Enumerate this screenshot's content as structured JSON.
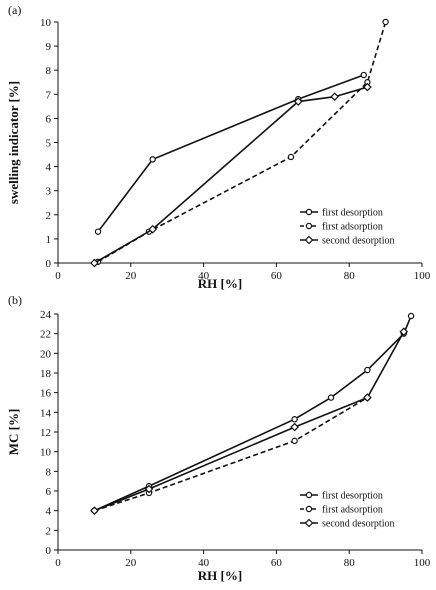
{
  "chart_data": [
    {
      "panel_label": "(a)",
      "type": "line",
      "xlabel": "RH [%]",
      "ylabel": "swelling indicator  [%]",
      "xlim": [
        0,
        100
      ],
      "ylim": [
        0,
        10
      ],
      "xticks": [
        0,
        20,
        40,
        60,
        80,
        100
      ],
      "yticks": [
        0,
        1,
        2,
        3,
        4,
        5,
        6,
        7,
        8,
        9,
        10
      ],
      "legend_position": "right",
      "series": [
        {
          "name": "first desorption",
          "style": "solid",
          "marker": "circle",
          "x": [
            11,
            26,
            66,
            84
          ],
          "y": [
            1.3,
            4.3,
            6.8,
            7.8
          ]
        },
        {
          "name": "first adsorption",
          "style": "dashed",
          "marker": "circle",
          "x": [
            11,
            25,
            64,
            85,
            90
          ],
          "y": [
            0.05,
            1.3,
            4.4,
            7.5,
            10
          ]
        },
        {
          "name": "second desorption",
          "style": "solid",
          "marker": "diamond",
          "x": [
            10,
            26,
            66,
            76,
            85
          ],
          "y": [
            0.0,
            1.4,
            6.7,
            6.9,
            7.3
          ]
        }
      ]
    },
    {
      "panel_label": "(b)",
      "type": "line",
      "xlabel": "RH [%]",
      "ylabel": "MC [%]",
      "xlim": [
        0,
        100
      ],
      "ylim": [
        0,
        24
      ],
      "xticks": [
        0,
        20,
        40,
        60,
        80,
        100
      ],
      "yticks": [
        0,
        2,
        4,
        6,
        8,
        10,
        12,
        14,
        16,
        18,
        20,
        22,
        24
      ],
      "legend_position": "right",
      "series": [
        {
          "name": "first desorption",
          "style": "solid",
          "marker": "circle",
          "x": [
            10,
            25,
            65,
            75,
            85,
            95,
            97
          ],
          "y": [
            4.0,
            6.5,
            13.3,
            15.5,
            18.3,
            22.0,
            23.8
          ]
        },
        {
          "name": "first adsorption",
          "style": "dashed",
          "marker": "circle",
          "x": [
            10,
            25,
            65,
            85
          ],
          "y": [
            4.0,
            5.8,
            11.1,
            15.5
          ]
        },
        {
          "name": "second desorption",
          "style": "solid",
          "marker": "diamond",
          "x": [
            10,
            25,
            65,
            85,
            95
          ],
          "y": [
            4.0,
            6.2,
            12.5,
            15.5,
            22.2
          ]
        }
      ]
    }
  ]
}
